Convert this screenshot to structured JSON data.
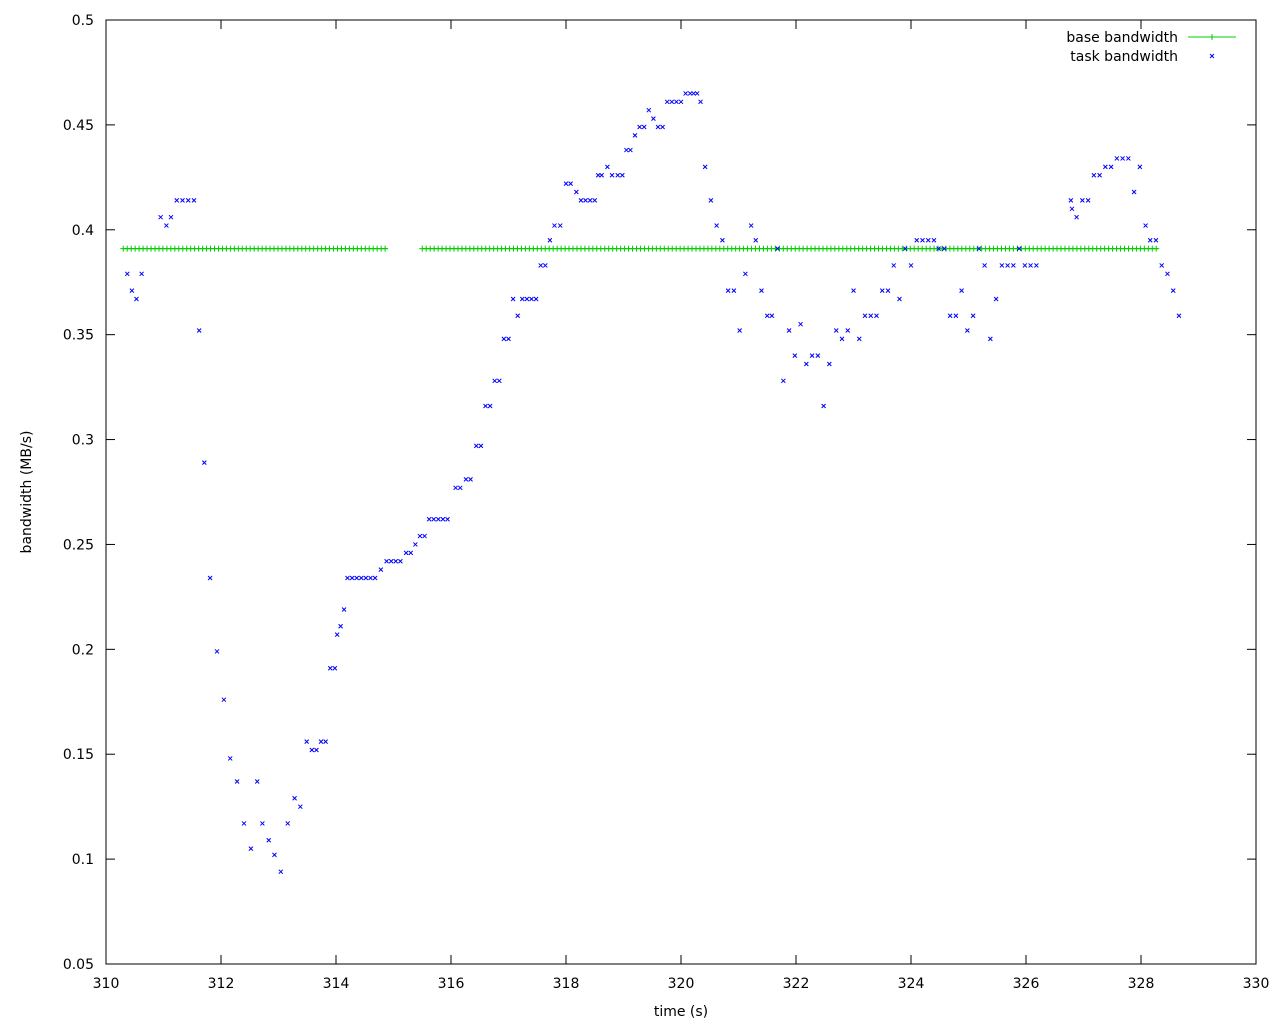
{
  "chart_data": {
    "type": "scatter",
    "xlabel": "time (s)",
    "ylabel": "bandwidth (MB/s)",
    "xlim": [
      310,
      330
    ],
    "ylim": [
      0.05,
      0.5
    ],
    "xticks": [
      "310",
      "312",
      "314",
      "316",
      "318",
      "320",
      "322",
      "324",
      "326",
      "328",
      "330"
    ],
    "yticks": [
      "0.05",
      "0.1",
      "0.15",
      "0.2",
      "0.25",
      "0.3",
      "0.35",
      "0.4",
      "0.45",
      "0.5"
    ],
    "legend_position": "top-right",
    "grid": false,
    "series": [
      {
        "name": "base bandwidth",
        "style": "line+plus",
        "color": "#00cc00",
        "segments": [
          [
            310.3,
            314.9
          ],
          [
            315.5,
            328.3
          ]
        ],
        "value": 0.391
      },
      {
        "name": "task bandwidth",
        "style": "points-x",
        "color": "#0000ff",
        "points": [
          [
            310.37,
            0.379
          ],
          [
            310.45,
            0.371
          ],
          [
            310.53,
            0.367
          ],
          [
            310.62,
            0.379
          ],
          [
            310.95,
            0.406
          ],
          [
            311.05,
            0.402
          ],
          [
            311.13,
            0.406
          ],
          [
            311.23,
            0.414
          ],
          [
            311.33,
            0.414
          ],
          [
            311.43,
            0.414
          ],
          [
            311.53,
            0.414
          ],
          [
            311.62,
            0.352
          ],
          [
            311.71,
            0.289
          ],
          [
            311.81,
            0.234
          ],
          [
            311.93,
            0.199
          ],
          [
            312.05,
            0.176
          ],
          [
            312.16,
            0.148
          ],
          [
            312.28,
            0.137
          ],
          [
            312.4,
            0.117
          ],
          [
            312.52,
            0.105
          ],
          [
            312.63,
            0.137
          ],
          [
            312.72,
            0.117
          ],
          [
            312.83,
            0.109
          ],
          [
            312.93,
            0.102
          ],
          [
            313.04,
            0.094
          ],
          [
            313.16,
            0.117
          ],
          [
            313.28,
            0.129
          ],
          [
            313.38,
            0.125
          ],
          [
            313.49,
            0.156
          ],
          [
            313.58,
            0.152
          ],
          [
            313.66,
            0.152
          ],
          [
            313.74,
            0.156
          ],
          [
            313.82,
            0.156
          ],
          [
            313.9,
            0.191
          ],
          [
            313.98,
            0.191
          ],
          [
            314.02,
            0.207
          ],
          [
            314.08,
            0.211
          ],
          [
            314.14,
            0.219
          ],
          [
            314.2,
            0.234
          ],
          [
            314.28,
            0.234
          ],
          [
            314.36,
            0.234
          ],
          [
            314.44,
            0.234
          ],
          [
            314.52,
            0.234
          ],
          [
            314.6,
            0.234
          ],
          [
            314.68,
            0.234
          ],
          [
            314.78,
            0.238
          ],
          [
            314.88,
            0.242
          ],
          [
            314.96,
            0.242
          ],
          [
            315.04,
            0.242
          ],
          [
            315.12,
            0.242
          ],
          [
            315.22,
            0.246
          ],
          [
            315.3,
            0.246
          ],
          [
            315.38,
            0.25
          ],
          [
            315.46,
            0.254
          ],
          [
            315.54,
            0.254
          ],
          [
            315.62,
            0.262
          ],
          [
            315.7,
            0.262
          ],
          [
            315.78,
            0.262
          ],
          [
            315.86,
            0.262
          ],
          [
            315.94,
            0.262
          ],
          [
            316.08,
            0.277
          ],
          [
            316.16,
            0.277
          ],
          [
            316.26,
            0.281
          ],
          [
            316.34,
            0.281
          ],
          [
            316.44,
            0.297
          ],
          [
            316.52,
            0.297
          ],
          [
            316.6,
            0.316
          ],
          [
            316.68,
            0.316
          ],
          [
            316.76,
            0.328
          ],
          [
            316.84,
            0.328
          ],
          [
            316.92,
            0.348
          ],
          [
            317.0,
            0.348
          ],
          [
            317.08,
            0.367
          ],
          [
            317.16,
            0.359
          ],
          [
            317.24,
            0.367
          ],
          [
            317.32,
            0.367
          ],
          [
            317.4,
            0.367
          ],
          [
            317.48,
            0.367
          ],
          [
            317.56,
            0.383
          ],
          [
            317.64,
            0.383
          ],
          [
            317.72,
            0.395
          ],
          [
            317.8,
            0.402
          ],
          [
            317.9,
            0.402
          ],
          [
            318.0,
            0.422
          ],
          [
            318.08,
            0.422
          ],
          [
            318.18,
            0.418
          ],
          [
            318.26,
            0.414
          ],
          [
            318.34,
            0.414
          ],
          [
            318.42,
            0.414
          ],
          [
            318.5,
            0.414
          ],
          [
            318.56,
            0.426
          ],
          [
            318.62,
            0.426
          ],
          [
            318.72,
            0.43
          ],
          [
            318.8,
            0.426
          ],
          [
            318.9,
            0.426
          ],
          [
            318.98,
            0.426
          ],
          [
            319.05,
            0.438
          ],
          [
            319.12,
            0.438
          ],
          [
            319.2,
            0.445
          ],
          [
            319.28,
            0.449
          ],
          [
            319.36,
            0.449
          ],
          [
            319.44,
            0.457
          ],
          [
            319.52,
            0.453
          ],
          [
            319.6,
            0.449
          ],
          [
            319.68,
            0.449
          ],
          [
            319.76,
            0.461
          ],
          [
            319.84,
            0.461
          ],
          [
            319.92,
            0.461
          ],
          [
            320.0,
            0.461
          ],
          [
            320.08,
            0.465
          ],
          [
            320.16,
            0.465
          ],
          [
            320.22,
            0.465
          ],
          [
            320.28,
            0.465
          ],
          [
            320.34,
            0.461
          ],
          [
            320.42,
            0.43
          ],
          [
            320.52,
            0.414
          ],
          [
            320.62,
            0.402
          ],
          [
            320.72,
            0.395
          ],
          [
            320.82,
            0.371
          ],
          [
            320.92,
            0.371
          ],
          [
            321.02,
            0.352
          ],
          [
            321.12,
            0.379
          ],
          [
            321.22,
            0.402
          ],
          [
            321.3,
            0.395
          ],
          [
            321.4,
            0.371
          ],
          [
            321.5,
            0.359
          ],
          [
            321.58,
            0.359
          ],
          [
            321.68,
            0.391
          ],
          [
            321.78,
            0.328
          ],
          [
            321.88,
            0.352
          ],
          [
            321.98,
            0.34
          ],
          [
            322.08,
            0.355
          ],
          [
            322.18,
            0.336
          ],
          [
            322.28,
            0.34
          ],
          [
            322.38,
            0.34
          ],
          [
            322.48,
            0.316
          ],
          [
            322.58,
            0.336
          ],
          [
            322.7,
            0.352
          ],
          [
            322.8,
            0.348
          ],
          [
            322.9,
            0.352
          ],
          [
            323.0,
            0.371
          ],
          [
            323.1,
            0.348
          ],
          [
            323.2,
            0.359
          ],
          [
            323.3,
            0.359
          ],
          [
            323.4,
            0.359
          ],
          [
            323.5,
            0.371
          ],
          [
            323.6,
            0.371
          ],
          [
            323.7,
            0.383
          ],
          [
            323.8,
            0.367
          ],
          [
            323.9,
            0.391
          ],
          [
            324.0,
            0.383
          ],
          [
            324.1,
            0.395
          ],
          [
            324.2,
            0.395
          ],
          [
            324.3,
            0.395
          ],
          [
            324.4,
            0.395
          ],
          [
            324.48,
            0.391
          ],
          [
            324.58,
            0.391
          ],
          [
            324.68,
            0.359
          ],
          [
            324.78,
            0.359
          ],
          [
            324.88,
            0.371
          ],
          [
            324.98,
            0.352
          ],
          [
            325.08,
            0.359
          ],
          [
            325.18,
            0.391
          ],
          [
            325.28,
            0.383
          ],
          [
            325.38,
            0.348
          ],
          [
            325.48,
            0.367
          ],
          [
            325.58,
            0.383
          ],
          [
            325.68,
            0.383
          ],
          [
            325.78,
            0.383
          ],
          [
            325.88,
            0.391
          ],
          [
            325.98,
            0.383
          ],
          [
            326.08,
            0.383
          ],
          [
            326.18,
            0.383
          ],
          [
            326.78,
            0.414
          ],
          [
            326.8,
            0.41
          ],
          [
            326.88,
            0.406
          ],
          [
            326.98,
            0.414
          ],
          [
            327.08,
            0.414
          ],
          [
            327.18,
            0.426
          ],
          [
            327.28,
            0.426
          ],
          [
            327.38,
            0.43
          ],
          [
            327.48,
            0.43
          ],
          [
            327.58,
            0.434
          ],
          [
            327.68,
            0.434
          ],
          [
            327.78,
            0.434
          ],
          [
            327.88,
            0.418
          ],
          [
            327.98,
            0.43
          ],
          [
            328.08,
            0.402
          ],
          [
            328.16,
            0.395
          ],
          [
            328.26,
            0.395
          ],
          [
            328.36,
            0.383
          ],
          [
            328.46,
            0.379
          ],
          [
            328.56,
            0.371
          ],
          [
            328.66,
            0.359
          ]
        ]
      }
    ]
  }
}
